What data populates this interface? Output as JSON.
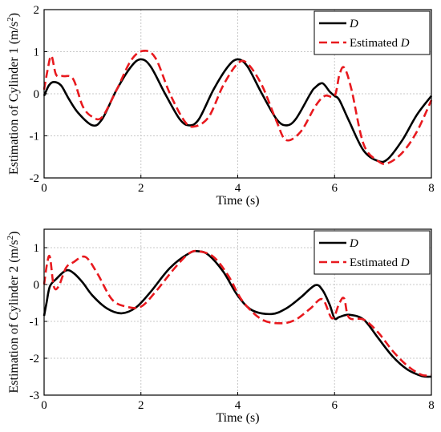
{
  "chart_data": [
    {
      "type": "line",
      "xlabel": "Time (s)",
      "ylabel": "Estimation of Cylinder 1 (m/s",
      "ylabel_sup": "2",
      "ylabel_close": ")",
      "xlim": [
        0,
        8
      ],
      "ylim": [
        -2,
        2
      ],
      "xticks": [
        "0",
        "2",
        "4",
        "6",
        "8"
      ],
      "yticks": [
        "-2",
        "-1",
        "0",
        "1",
        "2"
      ],
      "grid": true,
      "legend_position": "top-right",
      "series": [
        {
          "name": "D",
          "color": "#000000",
          "style": "solid",
          "x": [
            0,
            0.1,
            0.2,
            0.35,
            0.5,
            0.7,
            1.0,
            1.2,
            1.5,
            1.8,
            2.0,
            2.2,
            2.5,
            2.8,
            3.0,
            3.2,
            3.5,
            3.8,
            4.0,
            4.2,
            4.5,
            4.8,
            5.0,
            5.2,
            5.5,
            5.6,
            5.75,
            5.9,
            6.0,
            6.1,
            6.3,
            6.6,
            6.9,
            7.1,
            7.4,
            7.7,
            8.0
          ],
          "values": [
            -0.05,
            0.2,
            0.28,
            0.2,
            -0.1,
            -0.45,
            -0.75,
            -0.6,
            0.1,
            0.65,
            0.82,
            0.65,
            0.0,
            -0.6,
            -0.75,
            -0.6,
            0.1,
            0.65,
            0.82,
            0.65,
            0.0,
            -0.6,
            -0.75,
            -0.6,
            0.0,
            0.15,
            0.25,
            0.05,
            -0.05,
            -0.15,
            -0.65,
            -1.35,
            -1.6,
            -1.55,
            -1.1,
            -0.5,
            -0.05
          ]
        },
        {
          "name": "Estimated D",
          "color": "#e8191e",
          "style": "dashed",
          "x": [
            0,
            0.07,
            0.15,
            0.25,
            0.4,
            0.6,
            0.8,
            1.0,
            1.2,
            1.5,
            1.8,
            2.05,
            2.3,
            2.6,
            2.9,
            3.1,
            3.4,
            3.7,
            4.0,
            4.2,
            4.5,
            4.8,
            5.0,
            5.3,
            5.6,
            5.8,
            6.0,
            6.1,
            6.2,
            6.35,
            6.6,
            6.9,
            7.1,
            7.4,
            7.7,
            8.0
          ],
          "values": [
            0.1,
            0.55,
            0.9,
            0.45,
            0.42,
            0.35,
            -0.3,
            -0.55,
            -0.55,
            0.1,
            0.8,
            1.02,
            0.85,
            0.0,
            -0.65,
            -0.78,
            -0.55,
            0.2,
            0.72,
            0.72,
            0.2,
            -0.65,
            -1.1,
            -0.9,
            -0.3,
            -0.05,
            -0.05,
            0.45,
            0.62,
            0.1,
            -1.2,
            -1.6,
            -1.65,
            -1.4,
            -0.9,
            -0.15
          ]
        }
      ]
    },
    {
      "type": "line",
      "xlabel": "Time (s)",
      "ylabel": "Estimation of Cylinder 2 (m/s",
      "ylabel_sup": "2",
      "ylabel_close": ")",
      "xlim": [
        0,
        8
      ],
      "ylim": [
        -3,
        1.5
      ],
      "xticks": [
        "0",
        "2",
        "4",
        "6",
        "8"
      ],
      "yticks": [
        "-3",
        "-2",
        "-1",
        "0",
        "1"
      ],
      "yticks_values": [
        -3,
        -2,
        -1,
        0,
        1
      ],
      "grid": true,
      "legend_position": "top-right",
      "series": [
        {
          "name": "D",
          "color": "#000000",
          "style": "solid",
          "x": [
            0,
            0.05,
            0.12,
            0.25,
            0.45,
            0.6,
            0.8,
            1.0,
            1.3,
            1.6,
            1.9,
            2.2,
            2.6,
            3.0,
            3.2,
            3.4,
            3.7,
            4.0,
            4.3,
            4.7,
            5.0,
            5.3,
            5.6,
            5.75,
            5.9,
            6.0,
            6.1,
            6.3,
            6.6,
            6.9,
            7.2,
            7.5,
            7.8,
            8.0
          ],
          "values": [
            -0.85,
            -0.5,
            -0.05,
            0.15,
            0.38,
            0.32,
            0.05,
            -0.3,
            -0.65,
            -0.78,
            -0.62,
            -0.2,
            0.45,
            0.85,
            0.9,
            0.8,
            0.35,
            -0.3,
            -0.7,
            -0.8,
            -0.65,
            -0.35,
            -0.02,
            -0.15,
            -0.55,
            -0.92,
            -0.88,
            -0.82,
            -0.95,
            -1.45,
            -1.95,
            -2.3,
            -2.48,
            -2.5
          ]
        },
        {
          "name": "Estimated D",
          "color": "#e8191e",
          "style": "dashed",
          "x": [
            0,
            0.06,
            0.12,
            0.2,
            0.3,
            0.45,
            0.6,
            0.85,
            1.1,
            1.4,
            1.7,
            2.0,
            2.3,
            2.7,
            3.0,
            3.2,
            3.5,
            3.8,
            4.1,
            4.5,
            4.9,
            5.2,
            5.5,
            5.75,
            5.95,
            6.1,
            6.2,
            6.3,
            6.6,
            6.9,
            7.2,
            7.5,
            7.8,
            8.0
          ],
          "values": [
            0.0,
            0.55,
            0.75,
            -0.05,
            -0.05,
            0.45,
            0.6,
            0.75,
            0.3,
            -0.4,
            -0.6,
            -0.6,
            -0.2,
            0.45,
            0.85,
            0.9,
            0.75,
            0.25,
            -0.45,
            -0.95,
            -1.05,
            -0.95,
            -0.65,
            -0.4,
            -0.92,
            -0.5,
            -0.38,
            -0.9,
            -0.95,
            -1.3,
            -1.8,
            -2.2,
            -2.45,
            -2.45
          ]
        }
      ]
    }
  ]
}
